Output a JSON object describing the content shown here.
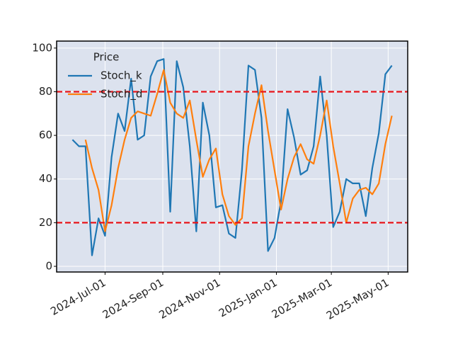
{
  "chart_data": {
    "type": "line",
    "legend_title": "Price",
    "legend": "upper left",
    "grid": true,
    "x": [
      "2024-05-27",
      "2024-06-03",
      "2024-06-10",
      "2024-06-17",
      "2024-06-24",
      "2024-07-01",
      "2024-07-08",
      "2024-07-15",
      "2024-07-22",
      "2024-07-29",
      "2024-08-05",
      "2024-08-12",
      "2024-08-19",
      "2024-08-26",
      "2024-09-02",
      "2024-09-09",
      "2024-09-16",
      "2024-09-23",
      "2024-09-30",
      "2024-10-07",
      "2024-10-14",
      "2024-10-21",
      "2024-10-28",
      "2024-11-04",
      "2024-11-11",
      "2024-11-18",
      "2024-11-25",
      "2024-12-02",
      "2024-12-09",
      "2024-12-16",
      "2024-12-23",
      "2024-12-30",
      "2025-01-06",
      "2025-01-13",
      "2025-01-20",
      "2025-01-27",
      "2025-02-03",
      "2025-02-10",
      "2025-02-17",
      "2025-02-24",
      "2025-03-03",
      "2025-03-10",
      "2025-03-17",
      "2025-03-24",
      "2025-03-31",
      "2025-04-07",
      "2025-04-14",
      "2025-04-21",
      "2025-04-28",
      "2025-05-05"
    ],
    "series": [
      {
        "name": "Stoch_k",
        "color": "#1f77b4",
        "values": [
          58,
          55,
          55,
          5,
          22,
          14,
          50,
          70,
          62,
          86,
          58,
          60,
          87,
          94,
          95,
          25,
          94,
          82,
          55,
          16,
          75,
          60,
          27,
          28,
          15,
          13,
          44,
          92,
          90,
          68,
          7,
          13,
          30,
          72,
          59,
          42,
          44,
          55,
          87,
          60,
          18,
          25,
          40,
          38,
          38,
          23,
          45,
          61,
          88,
          92
        ]
      },
      {
        "name": "Stoch_d",
        "color": "#ff7f0e",
        "values": [
          null,
          null,
          58,
          45,
          35,
          16,
          28,
          45,
          58,
          68,
          71,
          70,
          69,
          79,
          90,
          75,
          70,
          68,
          76,
          58,
          41,
          49,
          54,
          33,
          23,
          19,
          22,
          55,
          70,
          83,
          62,
          44,
          26,
          40,
          50,
          56,
          49,
          47,
          60,
          76,
          55,
          38,
          20,
          31,
          35,
          36,
          33,
          38,
          56,
          69
        ]
      }
    ],
    "hlines": [
      80,
      20
    ],
    "hline_color": "#e8161b",
    "xlim": [
      "2024-05-10",
      "2025-05-22"
    ],
    "xticks": [
      {
        "value": "2024-07-01",
        "label": "2024-Jul-01"
      },
      {
        "value": "2024-09-01",
        "label": "2024-Sep-01"
      },
      {
        "value": "2024-11-01",
        "label": "2024-Nov-01"
      },
      {
        "value": "2025-01-01",
        "label": "2025-Jan-01"
      },
      {
        "value": "2025-03-01",
        "label": "2025-Mar-01"
      },
      {
        "value": "2025-05-01",
        "label": "2025-May-01"
      }
    ],
    "ylim": [
      -2.6,
      103.2
    ],
    "yticks": [
      0,
      20,
      40,
      60,
      80,
      100
    ]
  }
}
